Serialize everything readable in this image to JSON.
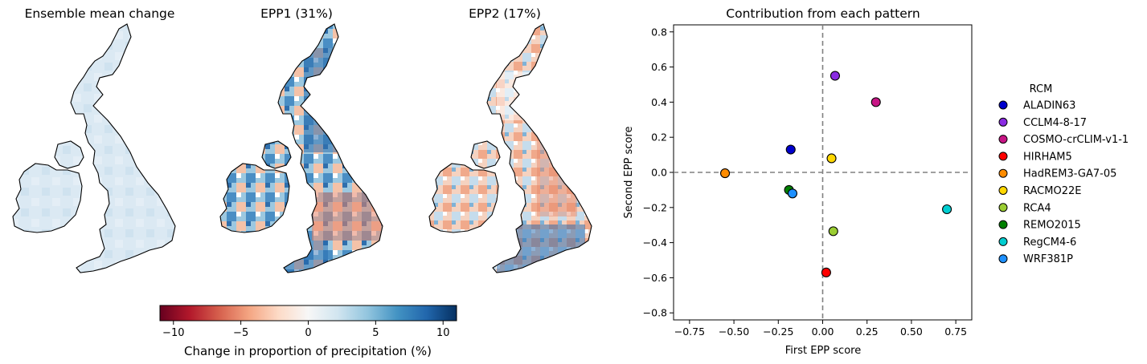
{
  "maps": [
    {
      "title": "Ensemble mean change"
    },
    {
      "title": "EPP1 (31%)"
    },
    {
      "title": "EPP2 (17%)"
    }
  ],
  "colorbar": {
    "label": "Change in proportion of precipitation (%)",
    "range": [
      -11,
      11
    ],
    "ticks": [
      -10,
      -5,
      0,
      5,
      10
    ],
    "colors": [
      "#67001f",
      "#b2182b",
      "#d6604d",
      "#f4a582",
      "#fddbc7",
      "#f7f7f7",
      "#d1e5f0",
      "#92c5de",
      "#4393c3",
      "#2166ac",
      "#053061"
    ]
  },
  "chart_data": {
    "type": "scatter",
    "title": "Contribution from each pattern",
    "xlabel": "First EPP score",
    "ylabel": "Second EPP score",
    "xlim": [
      -0.84,
      0.84
    ],
    "ylim": [
      -0.84,
      0.84
    ],
    "xticks": [
      -0.75,
      -0.5,
      -0.25,
      0.0,
      0.25,
      0.5,
      0.75
    ],
    "yticks": [
      -0.8,
      -0.6,
      -0.4,
      -0.2,
      0.0,
      0.2,
      0.4,
      0.6,
      0.8
    ],
    "grid": false,
    "reference_lines": {
      "x": 0,
      "y": 0,
      "style": "dashed"
    },
    "legend_title": "RCM",
    "legend_position": "right, outside",
    "series": [
      {
        "name": "ALADIN63",
        "color": "#0000cd",
        "x": -0.18,
        "y": 0.13
      },
      {
        "name": "CCLM4-8-17",
        "color": "#8a2be2",
        "x": 0.07,
        "y": 0.55
      },
      {
        "name": "COSMO-crCLIM-v1-1",
        "color": "#c71585",
        "x": 0.3,
        "y": 0.4
      },
      {
        "name": "HIRHAM5",
        "color": "#ff0000",
        "x": 0.02,
        "y": -0.57
      },
      {
        "name": "HadREM3-GA7-05",
        "color": "#ff8c00",
        "x": -0.55,
        "y": -0.005
      },
      {
        "name": "RACMO22E",
        "color": "#ffd700",
        "x": 0.05,
        "y": 0.08
      },
      {
        "name": "RCA4",
        "color": "#9acd32",
        "x": 0.06,
        "y": -0.335
      },
      {
        "name": "REMO2015",
        "color": "#008000",
        "x": -0.19,
        "y": -0.1
      },
      {
        "name": "RegCM4-6",
        "color": "#00ced1",
        "x": 0.7,
        "y": -0.21
      },
      {
        "name": "WRF381P",
        "color": "#1e90ff",
        "x": -0.17,
        "y": -0.12
      }
    ]
  }
}
